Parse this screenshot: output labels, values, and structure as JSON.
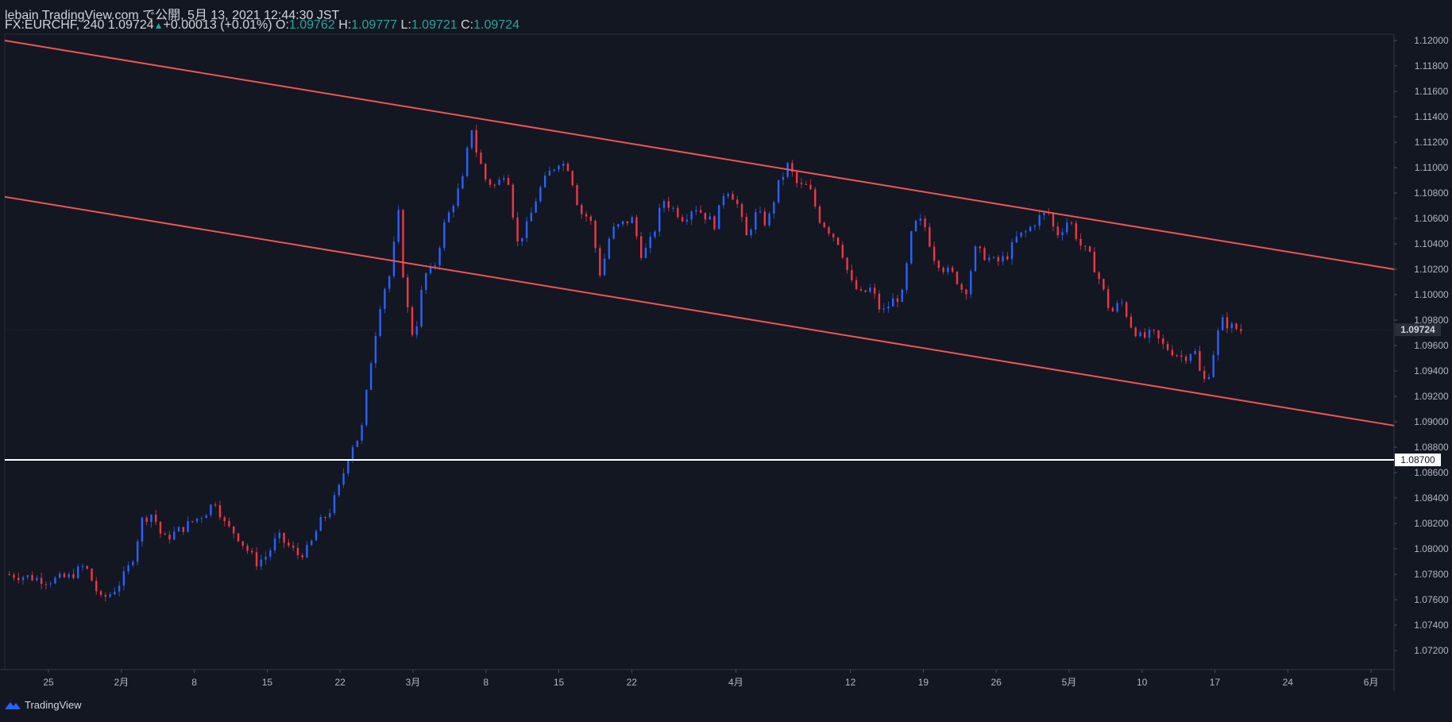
{
  "header": {
    "line1": "lebain TradingView.com で公開, 5月 13, 2021 12:44:30 JST",
    "symbol_prefix": "FX:EURCHF, 240 1.09724",
    "change": "+0.00013 (+0.01%)",
    "o_label": "O:",
    "o_value": "1.09762",
    "h_label": "H:",
    "h_value": "1.09777",
    "l_label": "L:",
    "l_value": "1.09721",
    "c_label": "C:",
    "c_value": "1.09724"
  },
  "footer": {
    "brand": "TradingView"
  },
  "colors": {
    "background": "#131722",
    "up": "#2962ff",
    "down": "#f23645",
    "trendline": "#f05454",
    "hline": "#ffffff",
    "axis_text": "#b2b5be",
    "grid": "#1e222d"
  },
  "chart_data": {
    "type": "candlestick",
    "title": "FX:EURCHF, 240",
    "ylim": [
      1.0705,
      1.1205
    ],
    "y_ticks": [
      "1.12000",
      "1.11800",
      "1.11600",
      "1.11400",
      "1.11200",
      "1.11000",
      "1.10800",
      "1.10600",
      "1.10400",
      "1.10200",
      "1.10000",
      "1.09800",
      "1.09600",
      "1.09400",
      "1.09200",
      "1.09000",
      "1.08800",
      "1.08600",
      "1.08400",
      "1.08200",
      "1.08000",
      "1.07800",
      "1.07600",
      "1.07400",
      "1.07200"
    ],
    "x_ticks": [
      {
        "label": "25",
        "day": 0
      },
      {
        "label": "2月",
        "day": 7
      },
      {
        "label": "8",
        "day": 14
      },
      {
        "label": "15",
        "day": 21
      },
      {
        "label": "22",
        "day": 28
      },
      {
        "label": "3月",
        "day": 35
      },
      {
        "label": "8",
        "day": 42
      },
      {
        "label": "15",
        "day": 49
      },
      {
        "label": "22",
        "day": 56
      },
      {
        "label": "4月",
        "day": 66
      },
      {
        "label": "12",
        "day": 77
      },
      {
        "label": "19",
        "day": 84
      },
      {
        "label": "26",
        "day": 91
      },
      {
        "label": "5月",
        "day": 98
      },
      {
        "label": "10",
        "day": 105
      },
      {
        "label": "17",
        "day": 112
      },
      {
        "label": "24",
        "day": 119
      },
      {
        "label": "6月",
        "day": 127
      }
    ],
    "price_path": [
      [
        -4.2,
        1.078
      ],
      [
        -2,
        1.0778
      ],
      [
        0,
        1.0775
      ],
      [
        2,
        1.0778
      ],
      [
        3.5,
        1.0787
      ],
      [
        5,
        1.076
      ],
      [
        6,
        1.0765
      ],
      [
        7,
        1.0775
      ],
      [
        8,
        1.079
      ],
      [
        9,
        1.0823
      ],
      [
        10,
        1.0828
      ],
      [
        11,
        1.0807
      ],
      [
        13,
        1.0817
      ],
      [
        15,
        1.0828
      ],
      [
        16,
        1.0838
      ],
      [
        17,
        1.0818
      ],
      [
        18,
        1.0812
      ],
      [
        19,
        1.08
      ],
      [
        20,
        1.0789
      ],
      [
        21,
        1.0795
      ],
      [
        22,
        1.081
      ],
      [
        24,
        1.0795
      ],
      [
        25,
        1.08
      ],
      [
        26,
        1.082
      ],
      [
        27,
        1.083
      ],
      [
        28,
        1.085
      ],
      [
        29,
        1.088
      ],
      [
        30,
        1.089
      ],
      [
        31,
        1.095
      ],
      [
        32,
        1.1
      ],
      [
        33,
        1.102
      ],
      [
        33.5,
        1.1075
      ],
      [
        34,
        1.102
      ],
      [
        34.8,
        1.0968
      ],
      [
        35.5,
        1.098
      ],
      [
        36,
        1.1015
      ],
      [
        37,
        1.102
      ],
      [
        38,
        1.1055
      ],
      [
        39,
        1.1075
      ],
      [
        40,
        1.1095
      ],
      [
        40.5,
        1.1138
      ],
      [
        41,
        1.1115
      ],
      [
        42,
        1.109
      ],
      [
        43,
        1.1085
      ],
      [
        44,
        1.11
      ],
      [
        45,
        1.104
      ],
      [
        46,
        1.1055
      ],
      [
        47,
        1.108
      ],
      [
        48,
        1.1095
      ],
      [
        49,
        1.1105
      ],
      [
        50,
        1.11
      ],
      [
        51,
        1.1065
      ],
      [
        52,
        1.106
      ],
      [
        53,
        1.1015
      ],
      [
        54,
        1.105
      ],
      [
        55,
        1.1055
      ],
      [
        56,
        1.106
      ],
      [
        57,
        1.103
      ],
      [
        58,
        1.1045
      ],
      [
        59,
        1.1075
      ],
      [
        61,
        1.106
      ],
      [
        62,
        1.107
      ],
      [
        64,
        1.1055
      ],
      [
        65,
        1.1085
      ],
      [
        66,
        1.1075
      ],
      [
        67,
        1.1045
      ],
      [
        68,
        1.1065
      ],
      [
        69,
        1.1055
      ],
      [
        70,
        1.1085
      ],
      [
        71,
        1.1102
      ],
      [
        72,
        1.1085
      ],
      [
        73,
        1.1085
      ],
      [
        74,
        1.106
      ],
      [
        75,
        1.105
      ],
      [
        76,
        1.104
      ],
      [
        77,
        1.101
      ],
      [
        78,
        1.1
      ],
      [
        79,
        1.1005
      ],
      [
        80,
        1.0985
      ],
      [
        81,
        1.0995
      ],
      [
        82,
        1.1
      ],
      [
        83,
        1.1055
      ],
      [
        84,
        1.1058
      ],
      [
        85,
        1.103
      ],
      [
        86,
        1.102
      ],
      [
        87,
        1.1015
      ],
      [
        88,
        1.1
      ],
      [
        89,
        1.1035
      ],
      [
        90,
        1.103
      ],
      [
        91,
        1.1025
      ],
      [
        92,
        1.103
      ],
      [
        93,
        1.1045
      ],
      [
        94,
        1.105
      ],
      [
        95,
        1.106
      ],
      [
        96,
        1.1065
      ],
      [
        96.6,
        1.105
      ],
      [
        97,
        1.1048
      ],
      [
        98,
        1.106
      ],
      [
        99,
        1.104
      ],
      [
        100,
        1.103
      ],
      [
        101,
        1.101
      ],
      [
        102,
        1.0985
      ],
      [
        103,
        1.0995
      ],
      [
        104,
        1.0975
      ],
      [
        105,
        1.0965
      ],
      [
        106,
        1.097
      ],
      [
        107,
        1.096
      ],
      [
        108,
        1.0955
      ],
      [
        109,
        1.095
      ],
      [
        110,
        1.0958
      ],
      [
        110.8,
        1.093
      ],
      [
        111.5,
        1.094
      ],
      [
        112,
        1.096
      ],
      [
        112.6,
        1.098
      ],
      [
        113.5,
        1.0975
      ],
      [
        114.5,
        1.0972
      ]
    ],
    "candle_count": 270,
    "last_price": "1.09724",
    "horizontal_line": {
      "price": 1.087,
      "label": "1.08700"
    },
    "trendlines": [
      {
        "name": "upper-channel",
        "from": [
          -4.2,
          1.12
        ],
        "to": [
          129.2,
          1.102
        ]
      },
      {
        "name": "lower-channel",
        "from": [
          -4.2,
          1.1077
        ],
        "to": [
          129.2,
          1.0897
        ]
      }
    ]
  }
}
